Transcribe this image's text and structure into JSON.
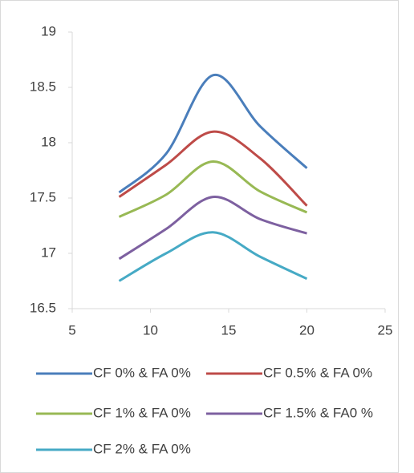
{
  "chart_data": {
    "type": "line",
    "smooth": true,
    "x": [
      8,
      11,
      14,
      17,
      20
    ],
    "series": [
      {
        "name": "CF 0% & FA 0%",
        "color": "#4a7ebb",
        "values": [
          17.55,
          17.9,
          18.61,
          18.15,
          17.77
        ]
      },
      {
        "name": "CF 0.5% & FA 0%",
        "color": "#be4b48",
        "values": [
          17.51,
          17.8,
          18.1,
          17.86,
          17.43
        ]
      },
      {
        "name": "CF 1% & FA 0%",
        "color": "#98b954",
        "values": [
          17.33,
          17.53,
          17.83,
          17.56,
          17.37
        ]
      },
      {
        "name": "CF 1.5% & FA0 %",
        "color": "#7d60a0",
        "values": [
          16.95,
          17.22,
          17.51,
          17.31,
          17.18
        ]
      },
      {
        "name": "CF 2% & FA 0%",
        "color": "#46aac5",
        "values": [
          16.75,
          17.0,
          17.19,
          16.97,
          16.77
        ]
      }
    ],
    "xlim": [
      5,
      25
    ],
    "xticks": [
      5,
      10,
      15,
      20,
      25
    ],
    "ylim": [
      16.5,
      19
    ],
    "yticks": [
      16.5,
      17,
      17.5,
      18,
      18.5,
      19
    ],
    "grid": false,
    "legend": "bottom"
  }
}
